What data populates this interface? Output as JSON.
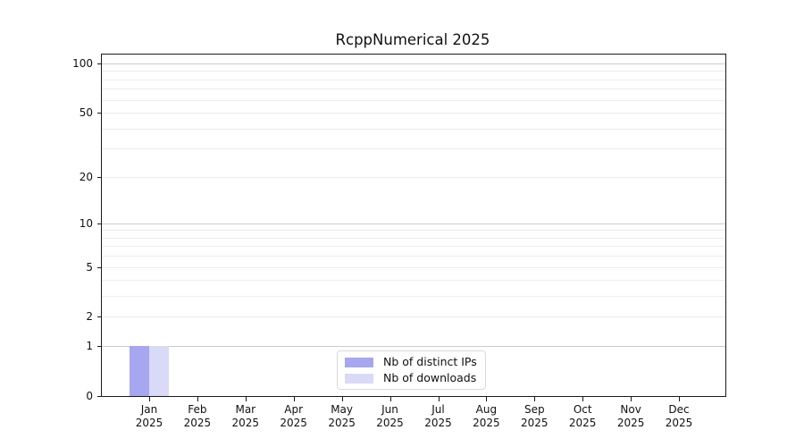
{
  "window": {
    "background": "#ffffff"
  },
  "chart_data": {
    "type": "bar",
    "title": "RcppNumerical 2025",
    "xlabel": "",
    "ylabel": "",
    "scale": "log1p",
    "ylim": [
      0,
      100
    ],
    "grid": "horizontal",
    "legend_position": "bottom-center",
    "year": "2025",
    "categories": [
      "Jan",
      "Feb",
      "Mar",
      "Apr",
      "May",
      "Jun",
      "Jul",
      "Aug",
      "Sep",
      "Oct",
      "Nov",
      "Dec"
    ],
    "series": [
      {
        "name": "Nb of distinct IPs",
        "color": "#a6a6f1",
        "values": [
          1,
          0,
          0,
          0,
          0,
          0,
          0,
          0,
          0,
          0,
          0,
          0
        ]
      },
      {
        "name": "Nb of downloads",
        "color": "#d9d9f8",
        "values": [
          1,
          0,
          0,
          0,
          0,
          0,
          0,
          0,
          0,
          0,
          0,
          0
        ]
      }
    ],
    "y_ticks_labeled": [
      0,
      1,
      2,
      5,
      10,
      20,
      50,
      100
    ],
    "y_major_decades": [
      1,
      10,
      100
    ],
    "y_minor_unlabeled": [
      3,
      4,
      6,
      7,
      8,
      9,
      30,
      40,
      60,
      70,
      80,
      90
    ]
  },
  "colors": {
    "grid_major": "#cccccc",
    "grid_minor": "#ececec",
    "spine": "#1a1a1a",
    "text": "#111111",
    "bar_distinct_ips": "#a6a6f1",
    "bar_downloads": "#d9d9f8"
  }
}
